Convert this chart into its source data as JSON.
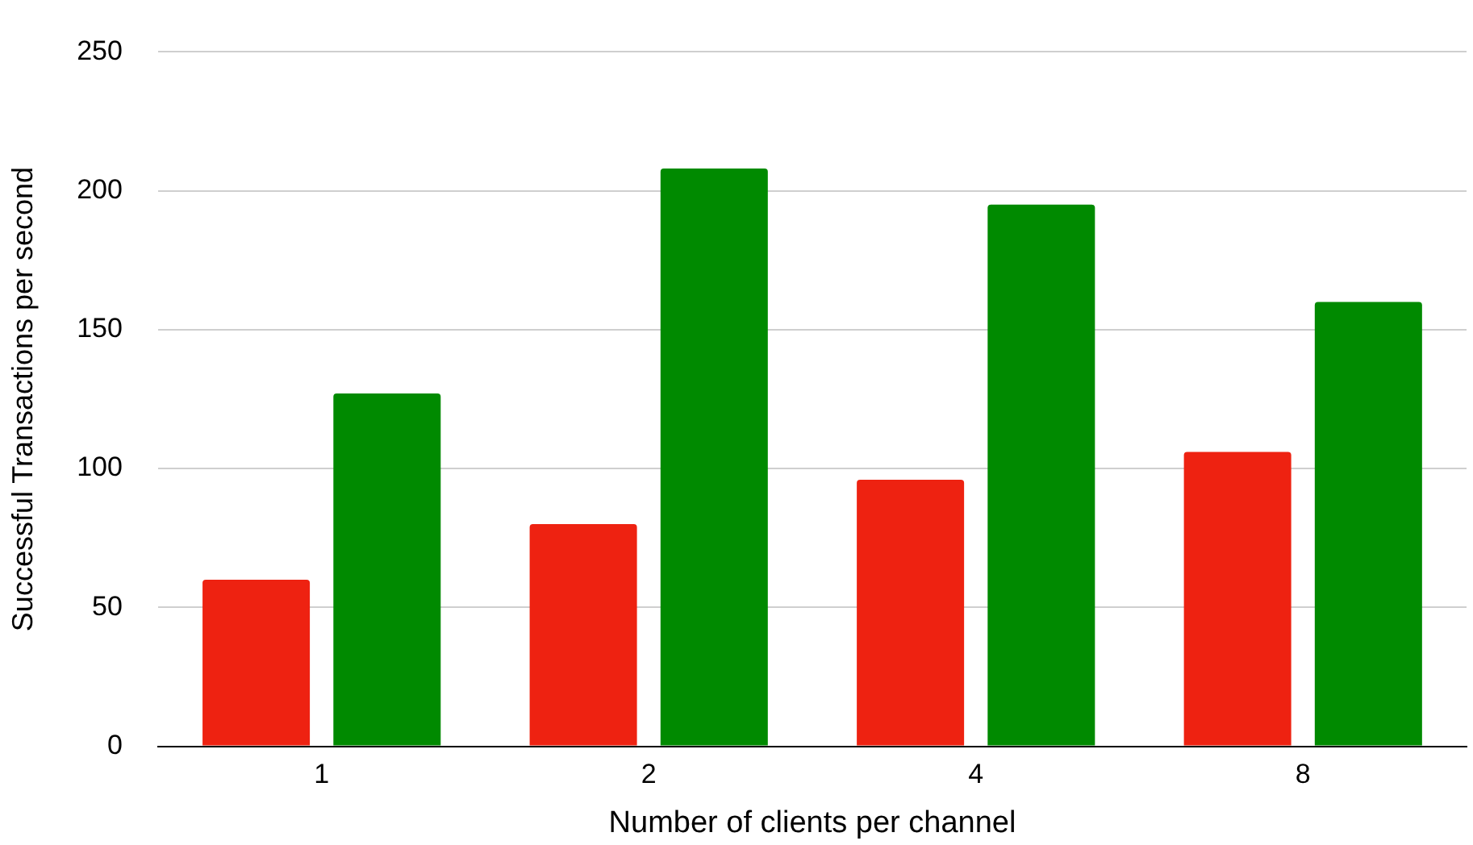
{
  "chart_data": {
    "type": "bar",
    "xlabel": "Number of clients per channel",
    "ylabel": "Successful Transactions per second",
    "categories": [
      "1",
      "2",
      "4",
      "8"
    ],
    "series": [
      {
        "color": "#ee2211",
        "values": [
          60,
          80,
          96,
          106
        ]
      },
      {
        "color": "#008a00",
        "values": [
          127,
          208,
          195,
          160
        ]
      }
    ],
    "ylim": [
      0,
      250
    ],
    "yticks": [
      0,
      50,
      100,
      150,
      200,
      250
    ],
    "grid": "y",
    "legend": false
  }
}
